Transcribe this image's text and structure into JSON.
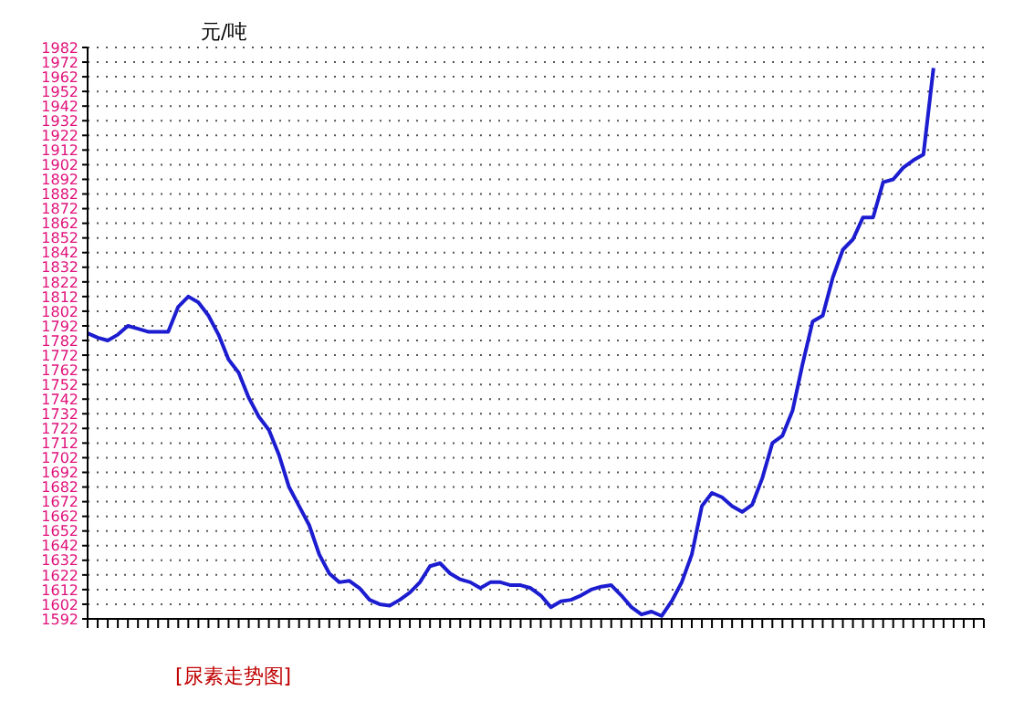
{
  "chart_data": {
    "type": "line",
    "ylabel": "元/吨",
    "annotations": [
      "[尿素走势图]"
    ],
    "categories": [
      null,
      null,
      null,
      null,
      null,
      null,
      null,
      null,
      null,
      null,
      null,
      null,
      null,
      null,
      null,
      null,
      null,
      null,
      null,
      null,
      null,
      null,
      null,
      null,
      null,
      null,
      null,
      null,
      null,
      null,
      null,
      null,
      null,
      null,
      null,
      null,
      null,
      null,
      null,
      null,
      null,
      null,
      null,
      null,
      null,
      null,
      null,
      null,
      null,
      null,
      null,
      null,
      null,
      null,
      null,
      null,
      null,
      null,
      null,
      null,
      null,
      null,
      null,
      null,
      null,
      null,
      null,
      null,
      null,
      null,
      null,
      null,
      null,
      null,
      null,
      null,
      null,
      null,
      null,
      null,
      null,
      null,
      null,
      null,
      null,
      null,
      null,
      null,
      null,
      null
    ],
    "series": [
      {
        "color": "#1c1cd0",
        "values": [
          1787,
          1784,
          1782,
          1786,
          1792,
          1790,
          1788,
          1788,
          1788,
          1805,
          1812,
          1808,
          1799,
          1786,
          1769,
          1760,
          1743,
          1730,
          1721,
          1704,
          1682,
          1669,
          1656,
          1636,
          1623,
          1617,
          1618,
          1613,
          1605,
          1602,
          1601,
          1605,
          1610,
          1617,
          1628,
          1630,
          1623,
          1619,
          1617,
          1613,
          1617,
          1617,
          1615,
          1615,
          1613,
          1608,
          1600,
          1604,
          1605,
          1608,
          1612,
          1614,
          1615,
          1608,
          1600,
          1595,
          1597,
          1594,
          1604,
          1617,
          1636,
          1669,
          1678,
          1675,
          1669,
          1665,
          1670,
          1688,
          1712,
          1717,
          1734,
          1766,
          1795,
          1799,
          1825,
          1844,
          1851,
          1866,
          1866,
          1890,
          1892,
          1900,
          1905,
          1909,
          1968,
          null,
          null,
          null,
          null,
          null
        ]
      }
    ],
    "ylim": [
      1592,
      1982
    ],
    "yticks": [
      1592,
      1602,
      1612,
      1622,
      1632,
      1642,
      1652,
      1662,
      1672,
      1682,
      1692,
      1702,
      1712,
      1722,
      1732,
      1742,
      1752,
      1762,
      1772,
      1782,
      1792,
      1802,
      1812,
      1822,
      1832,
      1842,
      1852,
      1862,
      1872,
      1882,
      1892,
      1902,
      1912,
      1922,
      1932,
      1942,
      1952,
      1962,
      1972,
      1982
    ],
    "grid": "y",
    "tick_labels": "y"
  }
}
